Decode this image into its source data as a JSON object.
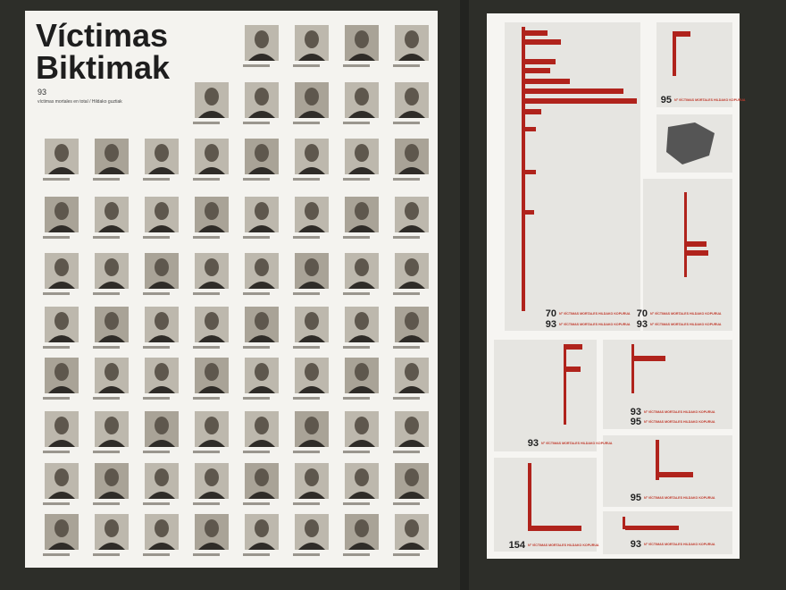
{
  "left_panel": {
    "title_line1": "Víctimas",
    "title_line2": "Biktimak",
    "total": 93,
    "total_caption": "víctimas mortales en total / Hildako guztiak"
  },
  "right_panel": {
    "caption": "Nº VÍCTIMAS MORTALES HILDAKO KOPURUA",
    "figures": [
      70,
      93,
      95,
      70,
      93,
      93,
      93,
      95,
      95,
      154,
      93
    ]
  }
}
